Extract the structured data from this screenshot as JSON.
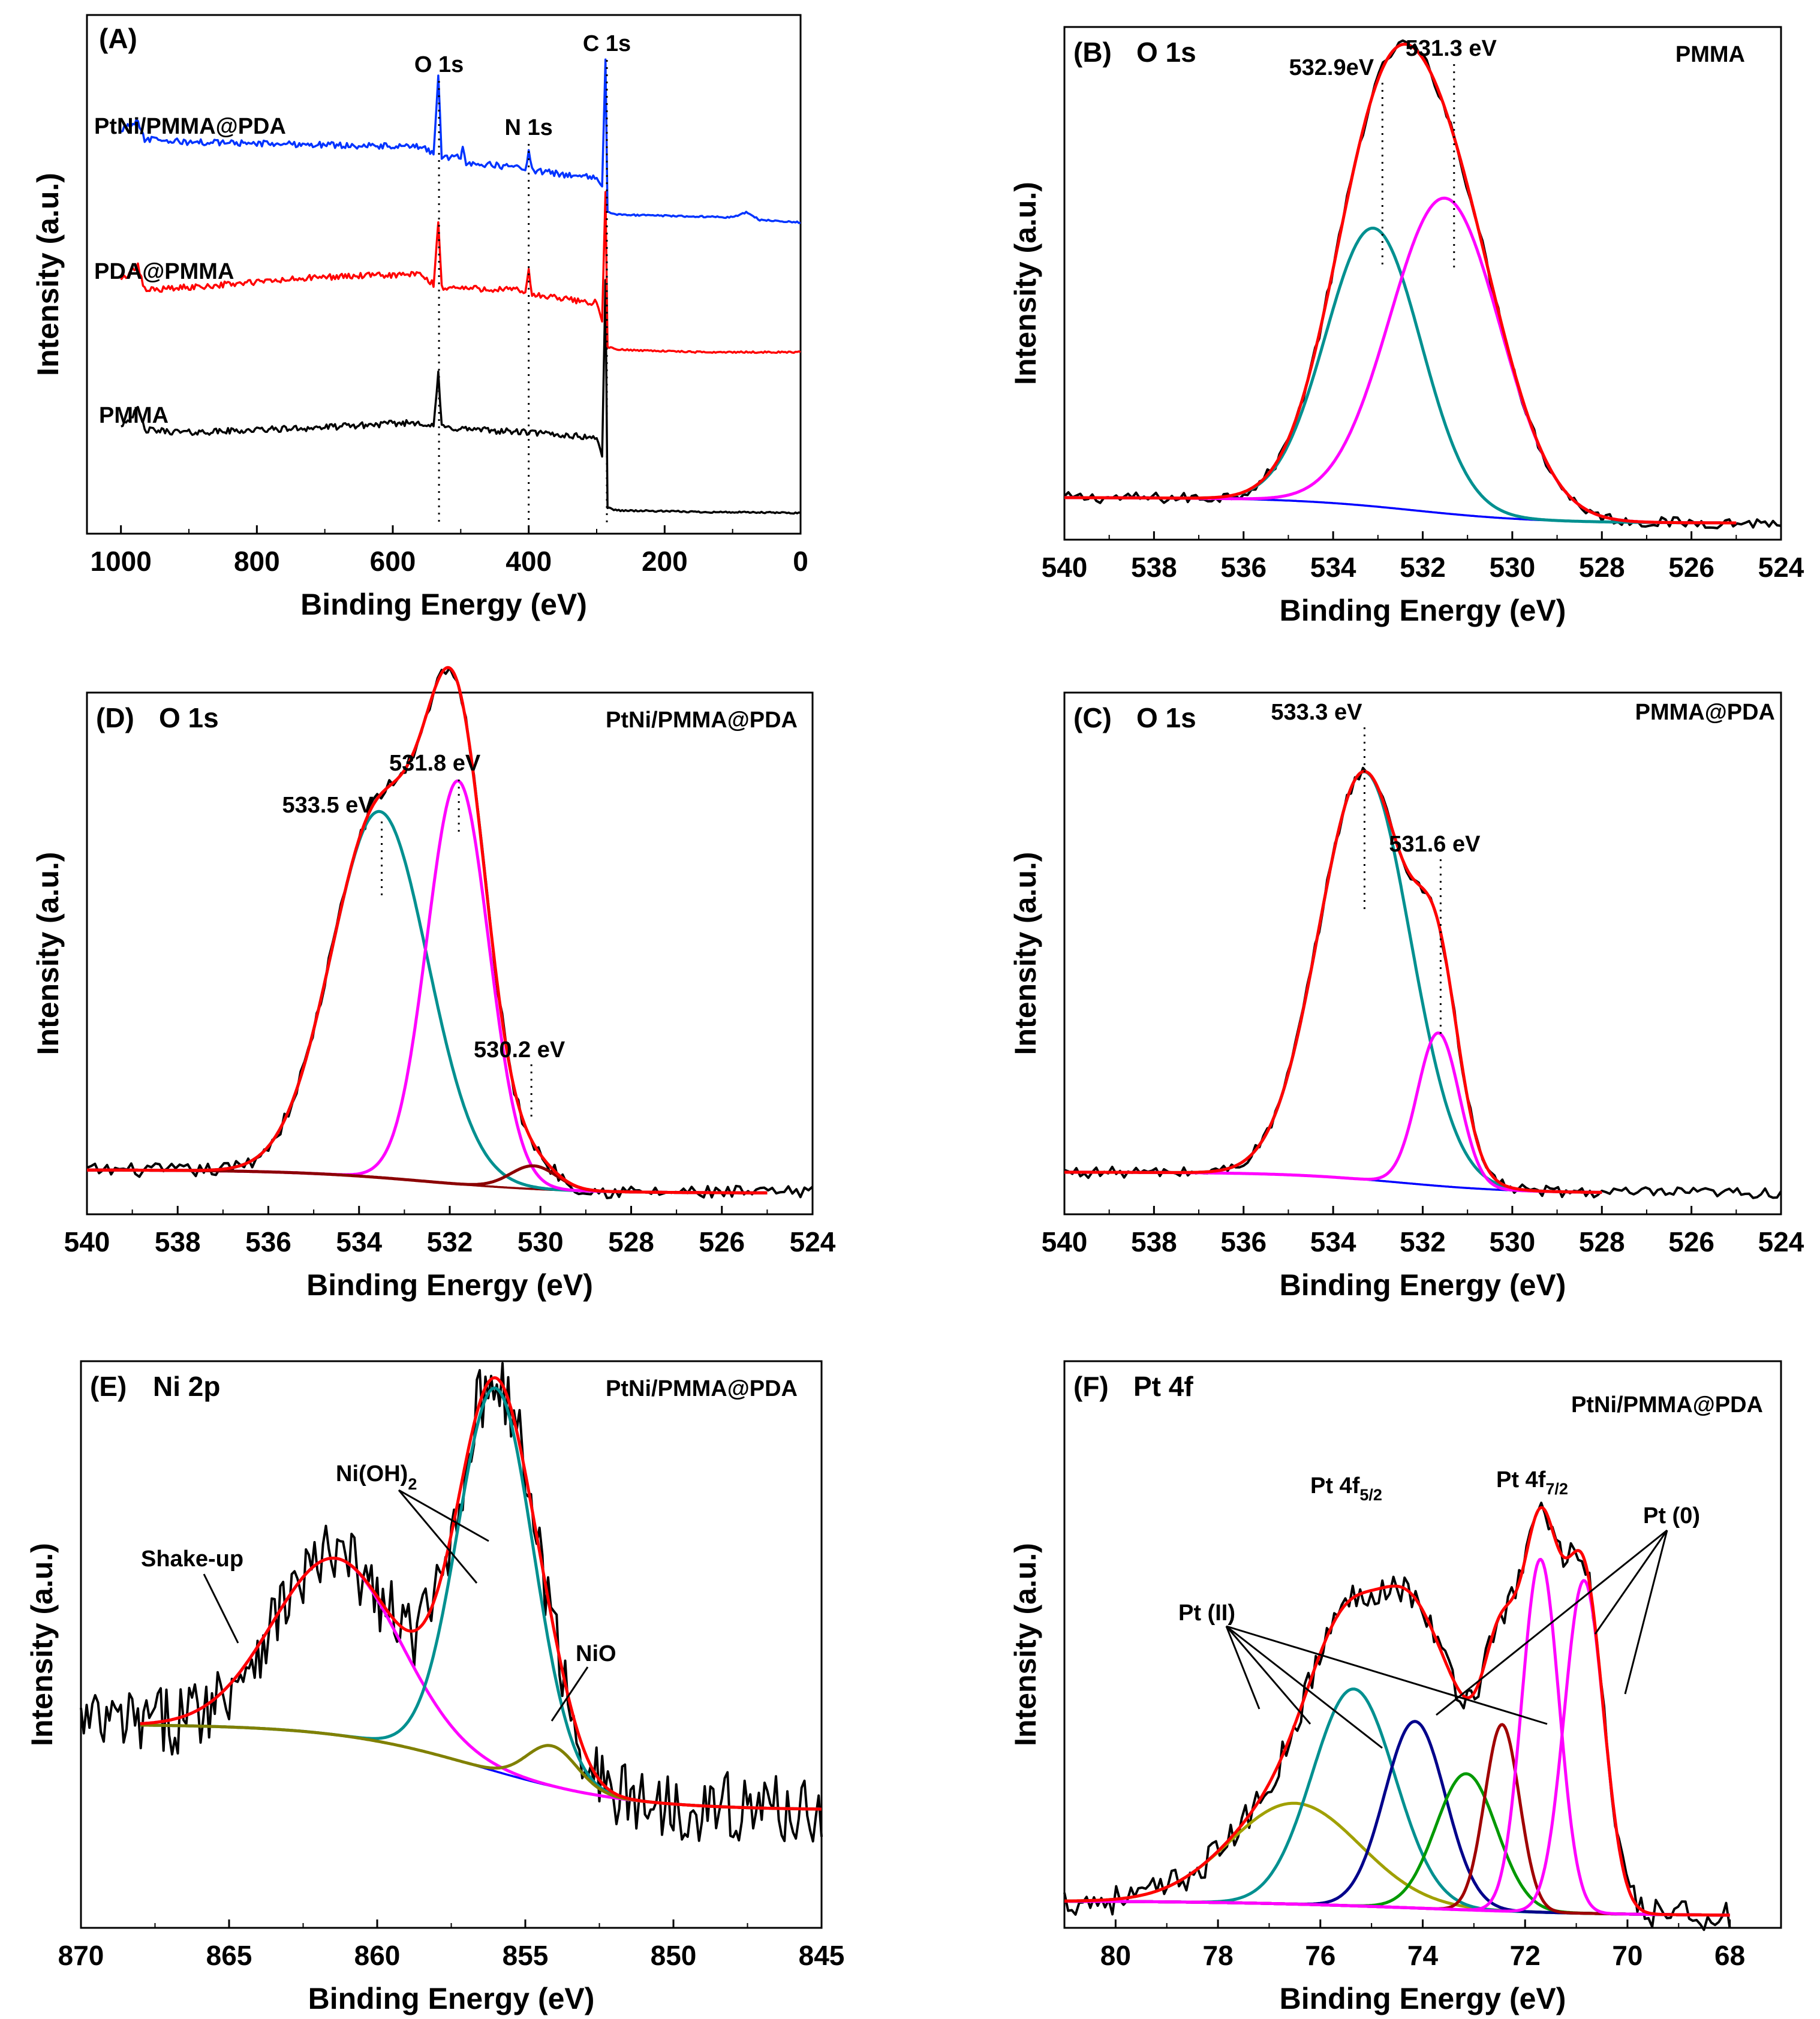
{
  "chart_data": [
    {
      "id": "A",
      "type": "line",
      "panel_label": "(A)",
      "title": "",
      "xlabel": "Binding Energy (eV)",
      "ylabel": "Intensity (a.u.)",
      "xlim": [
        1050,
        0
      ],
      "ylim": [
        0,
        10
      ],
      "x_ticks": [
        1000,
        800,
        600,
        400,
        200,
        0
      ],
      "peak_labels": [
        {
          "text": "O 1s",
          "x": 532
        },
        {
          "text": "N 1s",
          "x": 400
        },
        {
          "text": "C 1s",
          "x": 285
        }
      ],
      "series": [
        {
          "name": "PMMA",
          "color": "#000000",
          "baseline": 1.55,
          "points": [
            [
              1000,
              2.1
            ],
            [
              985,
              2.25
            ],
            [
              975,
              2.4
            ],
            [
              965,
              2.0
            ],
            [
              900,
              1.95
            ],
            [
              700,
              2.05
            ],
            [
              560,
              2.15
            ],
            [
              540,
              2.05
            ],
            [
              533,
              3.1
            ],
            [
              528,
              2.05
            ],
            [
              470,
              2.0
            ],
            [
              400,
              1.95
            ],
            [
              300,
              1.85
            ],
            [
              292,
              1.5
            ],
            [
              287,
              4.9
            ],
            [
              284,
              0.5
            ],
            [
              270,
              0.45
            ],
            [
              150,
              0.42
            ],
            [
              0,
              0.4
            ]
          ]
        },
        {
          "name": "PDA@PMMA",
          "color": "#ff0000",
          "baseline": 4.3,
          "points": [
            [
              1000,
              4.9
            ],
            [
              985,
              5.05
            ],
            [
              975,
              5.15
            ],
            [
              965,
              4.7
            ],
            [
              900,
              4.75
            ],
            [
              700,
              4.95
            ],
            [
              560,
              5.0
            ],
            [
              540,
              4.8
            ],
            [
              533,
              6.0
            ],
            [
              528,
              4.75
            ],
            [
              420,
              4.7
            ],
            [
              405,
              4.65
            ],
            [
              400,
              5.1
            ],
            [
              395,
              4.6
            ],
            [
              300,
              4.45
            ],
            [
              292,
              4.1
            ],
            [
              287,
              6.6
            ],
            [
              284,
              3.6
            ],
            [
              270,
              3.55
            ],
            [
              150,
              3.5
            ],
            [
              0,
              3.5
            ]
          ]
        },
        {
          "name": "PtNi/PMMA@PDA",
          "color": "#0033ff",
          "baseline": 6.9,
          "points": [
            [
              1000,
              7.8
            ],
            [
              985,
              7.9
            ],
            [
              975,
              7.95
            ],
            [
              965,
              7.6
            ],
            [
              900,
              7.55
            ],
            [
              700,
              7.5
            ],
            [
              560,
              7.45
            ],
            [
              540,
              7.35
            ],
            [
              533,
              8.8
            ],
            [
              528,
              7.25
            ],
            [
              500,
              7.25
            ],
            [
              497,
              7.5
            ],
            [
              492,
              7.15
            ],
            [
              405,
              7.05
            ],
            [
              400,
              7.35
            ],
            [
              395,
              7.0
            ],
            [
              300,
              6.85
            ],
            [
              292,
              6.7
            ],
            [
              287,
              9.15
            ],
            [
              284,
              6.2
            ],
            [
              270,
              6.15
            ],
            [
              100,
              6.1
            ],
            [
              80,
              6.2
            ],
            [
              60,
              6.05
            ],
            [
              0,
              6.0
            ]
          ]
        }
      ]
    },
    {
      "id": "B",
      "type": "line",
      "panel_label": "(B)",
      "title": "O 1s",
      "sample": "PMMA",
      "xlabel": "Binding Energy (eV)",
      "ylabel": "Intensity (a.u.)",
      "xlim": [
        540,
        524
      ],
      "ylim": [
        0,
        1.08
      ],
      "x_ticks": [
        540,
        538,
        536,
        534,
        532,
        530,
        528,
        526,
        524
      ],
      "annotations": [
        {
          "text": "532.9eV",
          "x": 532.9
        },
        {
          "text": "531.3 eV",
          "x": 531.3
        }
      ],
      "raw_range": [
        540,
        524
      ],
      "fit_range": [
        540,
        525
      ],
      "background": {
        "type": "shirley",
        "high": 0.065,
        "low": 0.01,
        "center": 532.2,
        "width": 1.4
      },
      "peaks": [
        {
          "name": "component 1",
          "center": 533.1,
          "amplitude": 0.6,
          "fwhm": 2.5,
          "color": "#009090"
        },
        {
          "name": "component 2",
          "center": 531.5,
          "amplitude": 0.68,
          "fwhm": 2.9,
          "color": "#ff00ff"
        }
      ],
      "envelope_color": "#ff0000",
      "noise": 0.012
    },
    {
      "id": "D",
      "type": "line",
      "panel_label": "(D)",
      "title": "O 1s",
      "sample": "PtNi/PMMA@PDA",
      "xlabel": "Binding Energy (eV)",
      "ylabel": "Intensity (a.u.)",
      "xlim": [
        540,
        524
      ],
      "ylim": [
        0,
        1.1
      ],
      "x_ticks": [
        540,
        538,
        536,
        534,
        532,
        530,
        528,
        526,
        524
      ],
      "annotations": [
        {
          "text": "533.5 eV",
          "x": 533.5
        },
        {
          "text": "531.8 eV",
          "x": 531.8
        },
        {
          "text": "530.2 eV",
          "x": 530.2
        }
      ],
      "raw_range": [
        540,
        524
      ],
      "fit_range": [
        540,
        525
      ],
      "background": {
        "type": "shirley",
        "high": 0.07,
        "low": 0.02,
        "center": 532.5,
        "width": 1.5
      },
      "background_color": "#8b0000",
      "peaks": [
        {
          "name": "component 1",
          "center": 533.55,
          "amplitude": 0.79,
          "fwhm": 2.5,
          "color": "#009090"
        },
        {
          "name": "component 2",
          "center": 531.82,
          "amplitude": 0.87,
          "fwhm": 1.6,
          "color": "#ff00ff"
        },
        {
          "name": "component 3",
          "center": 530.15,
          "amplitude": 0.05,
          "fwhm": 1.2,
          "color": "#8b0000"
        }
      ],
      "envelope_color": "#ff0000",
      "noise": 0.015
    },
    {
      "id": "C",
      "type": "line",
      "panel_label": "(C)",
      "title": "O 1s",
      "sample": "PMMA@PDA",
      "xlabel": "Binding Energy (eV)",
      "ylabel": "Intensity (a.u.)",
      "xlim": [
        540,
        524
      ],
      "ylim": [
        0,
        1.1
      ],
      "x_ticks": [
        540,
        538,
        536,
        534,
        532,
        530,
        528,
        526,
        524
      ],
      "annotations": [
        {
          "text": "533.3 eV",
          "x": 533.3
        },
        {
          "text": "531.6 eV",
          "x": 531.6
        }
      ],
      "raw_range": [
        540,
        524
      ],
      "fit_range": [
        540,
        528
      ],
      "background": {
        "type": "shirley",
        "high": 0.065,
        "low": 0.02,
        "center": 532.5,
        "width": 1.3
      },
      "peaks": [
        {
          "name": "component 1",
          "center": 533.3,
          "amplitude": 0.88,
          "fwhm": 2.4,
          "color": "#009090"
        },
        {
          "name": "component 2",
          "center": 531.65,
          "amplitude": 0.33,
          "fwhm": 1.1,
          "color": "#ff00ff"
        }
      ],
      "envelope_color": "#ff0000",
      "noise": 0.012
    },
    {
      "id": "E",
      "type": "line",
      "panel_label": "(E)",
      "title": "Ni 2p",
      "sample": "PtNi/PMMA@PDA",
      "xlabel": "Binding Energy (eV)",
      "ylabel": "Intensity (a.u.)",
      "xlim": [
        870,
        845
      ],
      "ylim": [
        0,
        1.1
      ],
      "x_ticks": [
        870,
        865,
        860,
        855,
        850,
        845
      ],
      "annotations": [
        {
          "text": "Shake-up",
          "x": 863
        },
        {
          "text": "Ni(OH)",
          "sub": "2",
          "x": 856
        },
        {
          "text": "NiO",
          "x": 854
        }
      ],
      "raw_range": [
        870,
        845
      ],
      "fit_range": [
        868,
        845
      ],
      "background": {
        "type": "shirley",
        "high": 0.38,
        "low": 0.21,
        "center": 856.5,
        "width": 2.5
      },
      "peaks": [
        {
          "name": "Shake-up",
          "center": 861.4,
          "amplitude": 0.35,
          "fwhm": 5.0,
          "color": "#ff00ff"
        },
        {
          "name": "Ni(OH)2",
          "center": 856.0,
          "amplitude": 0.76,
          "fwhm": 3.0,
          "color": "#009090"
        },
        {
          "name": "NiO",
          "center": 854.1,
          "amplitude": 0.08,
          "fwhm": 2.0,
          "color": "#808000"
        }
      ],
      "envelope_color": "#ff0000",
      "noise": 0.07
    },
    {
      "id": "F",
      "type": "line",
      "panel_label": "(F)",
      "title": "Pt 4f",
      "sample": "PtNi/PMMA@PDA",
      "xlabel": "Binding Energy (eV)",
      "ylabel": "Intensity (a.u.)",
      "xlim": [
        81,
        67
      ],
      "ylim": [
        0,
        1.1
      ],
      "x_ticks": [
        80,
        78,
        76,
        74,
        72,
        70,
        68
      ],
      "annotations": [
        {
          "text": "Pt 4f",
          "sub": "5/2",
          "x": 74.8
        },
        {
          "text": "Pt 4f",
          "sub": "7/2",
          "x": 71.7
        },
        {
          "text": "Pt (II)",
          "x": 76.5
        },
        {
          "text": "Pt (0)",
          "x": 70.9
        }
      ],
      "raw_range": [
        81,
        68
      ],
      "fit_range": [
        81,
        68
      ],
      "background": {
        "type": "shirley",
        "high": 0.03,
        "low": 0.0,
        "center": 74,
        "width": 2.0
      },
      "peaks": [
        {
          "name": "Pt 4f satellite",
          "center": 76.5,
          "amplitude": 0.2,
          "fwhm": 3.0,
          "color": "#a0a000"
        },
        {
          "name": "Pt (II) 4f5/2",
          "center": 75.35,
          "amplitude": 0.43,
          "fwhm": 1.9,
          "color": "#009090"
        },
        {
          "name": "Pt (0) 4f5/2",
          "center": 74.15,
          "amplitude": 0.37,
          "fwhm": 1.4,
          "color": "#00008b"
        },
        {
          "name": "Pt (II) 4f7/2",
          "center": 73.15,
          "amplitude": 0.27,
          "fwhm": 1.4,
          "color": "#009900"
        },
        {
          "name": "Pt (II) 4f7/2 b",
          "center": 72.45,
          "amplitude": 0.37,
          "fwhm": 0.8,
          "color": "#a00000"
        },
        {
          "name": "Pt (0) 4f7/2",
          "center": 71.7,
          "amplitude": 0.7,
          "fwhm": 0.85,
          "color": "#ff00ff"
        },
        {
          "name": "Pt (0) 4f7/2 b",
          "center": 70.85,
          "amplitude": 0.66,
          "fwhm": 0.9,
          "color": "#ff00ff"
        }
      ],
      "envelope_color": "#ff0000",
      "noise": 0.03
    }
  ]
}
